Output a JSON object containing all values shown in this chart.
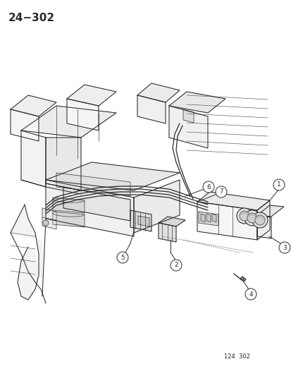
{
  "title_text": "24−302",
  "footer_text": "124  302",
  "bg_color": "#ffffff",
  "line_color": "#2a2a2a",
  "title_fontsize": 11,
  "footer_fontsize": 6,
  "fig_width": 4.14,
  "fig_height": 5.33,
  "dpi": 100,
  "lw_main": 0.75,
  "lw_thin": 0.45,
  "lw_thick": 1.0,
  "part_labels": [
    "1",
    "2",
    "3",
    "4",
    "5",
    "6",
    "7"
  ],
  "label_circle_r": 8,
  "label_fontsize": 6.5
}
